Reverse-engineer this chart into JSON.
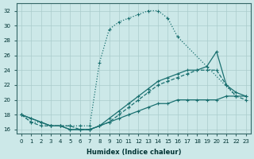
{
  "xlabel": "Humidex (Indice chaleur)",
  "bg_color": "#cce8e8",
  "line_color": "#1a7070",
  "xlim": [
    -0.5,
    23.5
  ],
  "ylim": [
    15.5,
    33
  ],
  "xticks": [
    0,
    1,
    2,
    3,
    4,
    5,
    6,
    7,
    8,
    9,
    10,
    11,
    12,
    13,
    14,
    15,
    16,
    17,
    18,
    19,
    20,
    21,
    22,
    23
  ],
  "yticks": [
    16,
    18,
    20,
    22,
    24,
    26,
    28,
    30,
    32
  ],
  "grid_color": "#aacccc",
  "curve1_x": [
    0,
    1,
    2,
    3,
    4,
    5,
    6,
    7,
    8,
    9,
    10,
    11,
    12,
    13,
    14,
    15,
    16,
    22
  ],
  "curve1_y": [
    18,
    17,
    17,
    16.5,
    16.5,
    16.5,
    16.5,
    16.5,
    25,
    29.5,
    30.5,
    31,
    31.5,
    32,
    32,
    31,
    28.5,
    20.5
  ],
  "curve2_x": [
    0,
    1,
    2,
    3,
    4,
    5,
    6,
    7,
    8,
    9,
    10,
    11,
    12,
    13,
    14,
    15,
    16,
    17,
    18,
    19,
    20,
    21,
    22,
    23
  ],
  "curve2_y": [
    18,
    17,
    16.5,
    16.5,
    16.5,
    16.5,
    16,
    16,
    16.5,
    17,
    18,
    19,
    20,
    21,
    22,
    22.5,
    23,
    23.5,
    24,
    24,
    24,
    22,
    20.5,
    20
  ],
  "curve3_x": [
    0,
    1,
    2,
    3,
    4,
    5,
    6,
    7,
    8,
    9,
    10,
    11,
    12,
    13,
    14,
    15,
    16,
    17,
    18,
    19,
    20,
    21,
    22,
    23
  ],
  "curve3_y": [
    18,
    17.5,
    17,
    16.5,
    16.5,
    16,
    16,
    16,
    16.5,
    17.5,
    18.5,
    19.5,
    20.5,
    21.5,
    22.5,
    23,
    23.5,
    24,
    24,
    24.5,
    26.5,
    22,
    21,
    20.5
  ],
  "curve4_x": [
    0,
    1,
    2,
    3,
    4,
    5,
    6,
    7,
    8,
    9,
    10,
    11,
    12,
    13,
    14,
    15,
    16,
    17,
    18,
    19,
    20,
    21,
    22,
    23
  ],
  "curve4_y": [
    18,
    17.5,
    17,
    16.5,
    16.5,
    16,
    16,
    16,
    16.5,
    17,
    17.5,
    18,
    18.5,
    19,
    19.5,
    19.5,
    20,
    20,
    20,
    20,
    20,
    20.5,
    20.5,
    20.5
  ]
}
